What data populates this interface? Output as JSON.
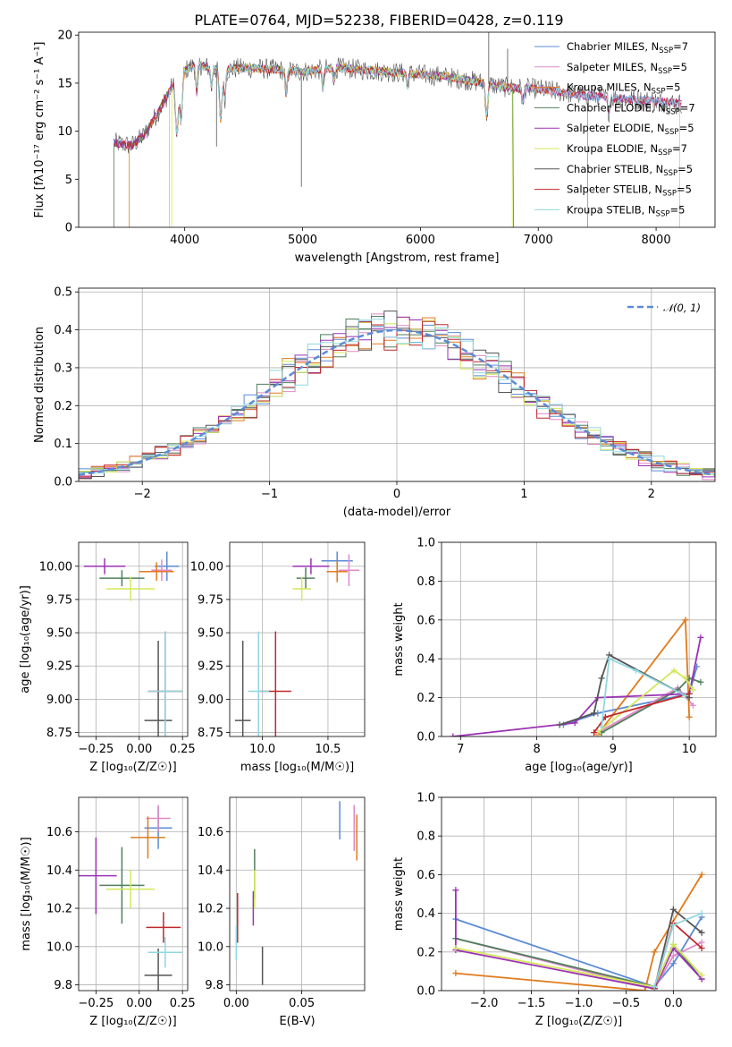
{
  "colors": [
    "#5b8bd6",
    "#e089c6",
    "#e07b1c",
    "#4f7f5c",
    "#9b32b4",
    "#d4e85a",
    "#555555",
    "#c0282b",
    "#8fd7e0"
  ],
  "chart_data": [
    {
      "id": "spectrum",
      "type": "line",
      "title": "PLATE=0764, MJD=52238, FIBERID=0428, z=0.119",
      "xlabel": "wavelength [Angstrom, rest frame]",
      "ylabel": "Flux [fλ10⁻¹⁷ erg cm⁻² s⁻¹ A⁻¹]",
      "xlim": [
        3100,
        8500
      ],
      "ylim": [
        0,
        20.3
      ],
      "xticks": [
        "4000",
        "5000",
        "6000",
        "7000",
        "8000"
      ],
      "xtick_values": [
        4000,
        5000,
        6000,
        7000,
        8000
      ],
      "yticks": [
        "0",
        "5",
        "10",
        "15",
        "20"
      ],
      "ytick_values": [
        0,
        5,
        10,
        15,
        20
      ],
      "legend_position": "right",
      "legend": [
        {
          "label": "Chabrier MILES, N",
          "sub": "SSP",
          "tail": "=7"
        },
        {
          "label": "Salpeter MILES, N",
          "sub": "SSP",
          "tail": "=5"
        },
        {
          "label": "Kroupa MILES, N",
          "sub": "SSP",
          "tail": "=5"
        },
        {
          "label": "Chabrier ELODIE, N",
          "sub": "SSP",
          "tail": "=7"
        },
        {
          "label": "Salpeter ELODIE, N",
          "sub": "SSP",
          "tail": "=5"
        },
        {
          "label": "Kroupa ELODIE, N",
          "sub": "SSP",
          "tail": "=7"
        },
        {
          "label": "Chabrier STELIB, N",
          "sub": "SSP",
          "tail": "=5"
        },
        {
          "label": "Salpeter STELIB, N",
          "sub": "SSP",
          "tail": "=5"
        },
        {
          "label": "Kroupa STELIB, N",
          "sub": "SSP",
          "tail": "=5"
        }
      ],
      "continuum": [
        [
          3400,
          8.8
        ],
        [
          3550,
          8.5
        ],
        [
          3650,
          9.5
        ],
        [
          3800,
          12.5
        ],
        [
          3950,
          16.0
        ],
        [
          4100,
          17.0
        ],
        [
          4300,
          16.3
        ],
        [
          4500,
          16.6
        ],
        [
          4800,
          16.4
        ],
        [
          5000,
          16.2
        ],
        [
          5300,
          16.6
        ],
        [
          5600,
          16.3
        ],
        [
          5900,
          16.0
        ],
        [
          6200,
          15.7
        ],
        [
          6500,
          15.1
        ],
        [
          6700,
          14.6
        ],
        [
          7000,
          14.4
        ],
        [
          7400,
          13.7
        ],
        [
          7800,
          13.3
        ],
        [
          8200,
          12.9
        ]
      ],
      "absorption_lines": [
        [
          3934,
          6
        ],
        [
          3969,
          5
        ],
        [
          4102,
          3
        ],
        [
          4227,
          2
        ],
        [
          4305,
          5
        ],
        [
          4340,
          3
        ],
        [
          4861,
          2.5
        ],
        [
          5175,
          2
        ],
        [
          5270,
          1.2
        ],
        [
          5890,
          1.5
        ],
        [
          6563,
          3.5
        ],
        [
          6870,
          1.5
        ],
        [
          7600,
          1.5
        ]
      ]
    },
    {
      "id": "residuals",
      "type": "bar",
      "xlabel": "(data-model)/error",
      "ylabel": "Normed distribution",
      "xlim": [
        -2.5,
        2.5
      ],
      "ylim": [
        0,
        0.51
      ],
      "xticks": [
        "−2",
        "−1",
        "0",
        "1",
        "2"
      ],
      "xtick_values": [
        -2,
        -1,
        0,
        1,
        2
      ],
      "yticks": [
        "0.0",
        "0.1",
        "0.2",
        "0.3",
        "0.4",
        "0.5"
      ],
      "ytick_values": [
        0,
        0.1,
        0.2,
        0.3,
        0.4,
        0.5
      ],
      "bin_width": 0.1,
      "legend": "𝒩(0, 1)",
      "legend_position": "top-right",
      "mean": 0,
      "sigma": 1
    },
    {
      "id": "age-z",
      "type": "scatter",
      "xlabel": "Z [log₁₀(Z/Z☉)]",
      "ylabel": "age  [log₁₀(age/yr)]",
      "xlim": [
        -0.35,
        0.28
      ],
      "ylim": [
        8.72,
        10.18
      ],
      "xticks": [
        "−0.25",
        "0.00",
        "0.25"
      ],
      "xtick_values": [
        -0.25,
        0,
        0.25
      ],
      "yticks": [
        "8.75",
        "9.00",
        "9.25",
        "9.50",
        "9.75",
        "10.00"
      ],
      "ytick_values": [
        8.75,
        9.0,
        9.25,
        9.5,
        9.75,
        10.0
      ],
      "points": [
        {
          "x": 0.16,
          "y": 10.0,
          "xerr": 0.07,
          "yerr": 0.11
        },
        {
          "x": 0.13,
          "y": 9.97,
          "xerr": 0.06,
          "yerr": 0.08
        },
        {
          "x": 0.1,
          "y": 9.96,
          "xerr": 0.1,
          "yerr": 0.07
        },
        {
          "x": -0.1,
          "y": 9.91,
          "xerr": 0.13,
          "yerr": 0.06
        },
        {
          "x": -0.2,
          "y": 10.0,
          "xerr": 0.12,
          "yerr": 0.06
        },
        {
          "x": -0.05,
          "y": 9.83,
          "xerr": 0.14,
          "yerr": 0.09
        },
        {
          "x": 0.11,
          "y": 8.84,
          "xerr": 0.08,
          "yerr": 0.6
        },
        {
          "x": 0.15,
          "y": 9.06,
          "xerr": 0.1,
          "yerr": 0.45
        },
        {
          "x": 0.15,
          "y": 9.06,
          "xerr": 0.1,
          "yerr": 0.45
        }
      ]
    },
    {
      "id": "age-mass",
      "type": "scatter",
      "xlabel": "mass [log₁₀(M/M☉)]",
      "ylabel": "",
      "xlim": [
        9.75,
        10.78
      ],
      "ylim": [
        8.72,
        10.18
      ],
      "xticks": [
        "10.0",
        "10.5"
      ],
      "xtick_values": [
        10.0,
        10.5
      ],
      "yticks": [
        "8.75",
        "9.00",
        "9.25",
        "9.50",
        "9.75",
        "10.00"
      ],
      "ytick_values": [
        8.75,
        9.0,
        9.25,
        9.5,
        9.75,
        10.0
      ],
      "points": [
        {
          "x": 10.57,
          "y": 10.04,
          "xerr": 0.12,
          "yerr": 0.07
        },
        {
          "x": 10.66,
          "y": 9.97,
          "xerr": 0.08,
          "yerr": 0.12
        },
        {
          "x": 10.57,
          "y": 9.96,
          "xerr": 0.08,
          "yerr": 0.08
        },
        {
          "x": 10.33,
          "y": 9.91,
          "xerr": 0.07,
          "yerr": 0.08
        },
        {
          "x": 10.37,
          "y": 10.0,
          "xerr": 0.14,
          "yerr": 0.06
        },
        {
          "x": 10.3,
          "y": 9.83,
          "xerr": 0.07,
          "yerr": 0.09
        },
        {
          "x": 9.85,
          "y": 8.84,
          "xerr": 0.06,
          "yerr": 0.6
        },
        {
          "x": 10.1,
          "y": 9.06,
          "xerr": 0.12,
          "yerr": 0.45
        },
        {
          "x": 9.97,
          "y": 9.06,
          "xerr": 0.08,
          "yerr": 0.45
        }
      ]
    },
    {
      "id": "weight-age",
      "type": "line",
      "xlabel": "age  [log₁₀(age/yr)]",
      "ylabel": "mass weight",
      "xlim": [
        6.75,
        10.35
      ],
      "ylim": [
        0,
        1.0
      ],
      "xticks": [
        "7",
        "8",
        "9",
        "10"
      ],
      "xtick_values": [
        7,
        8,
        9,
        10
      ],
      "yticks": [
        "0.0",
        "0.2",
        "0.4",
        "0.6",
        "0.8",
        "1.0"
      ],
      "ytick_values": [
        0,
        0.2,
        0.4,
        0.6,
        0.8,
        1.0
      ],
      "series": [
        {
          "x": [
            8.35,
            8.8,
            10.0,
            10.1
          ],
          "y": [
            0.06,
            0.12,
            0.22,
            0.36
          ]
        },
        {
          "x": [
            8.8,
            9.85,
            10.05
          ],
          "y": [
            0.02,
            0.25,
            0.16
          ]
        },
        {
          "x": [
            8.8,
            9.95,
            10.0
          ],
          "y": [
            0.01,
            0.6,
            0.1
          ]
        },
        {
          "x": [
            8.85,
            9.85,
            10.0,
            10.15
          ],
          "y": [
            0.02,
            0.24,
            0.3,
            0.28
          ]
        },
        {
          "x": [
            6.9,
            8.5,
            8.8,
            10.0,
            10.15
          ],
          "y": [
            0.0,
            0.07,
            0.2,
            0.22,
            0.51
          ]
        },
        {
          "x": [
            8.8,
            9.8,
            9.95,
            10.05
          ],
          "y": [
            0.02,
            0.34,
            0.3,
            0.24
          ]
        },
        {
          "x": [
            8.3,
            8.75,
            8.85,
            8.95,
            10.0
          ],
          "y": [
            0.06,
            0.12,
            0.3,
            0.42,
            0.2
          ]
        },
        {
          "x": [
            8.75,
            8.9,
            10.0
          ],
          "y": [
            0.02,
            0.1,
            0.22
          ]
        },
        {
          "x": [
            8.85,
            8.95,
            9.3,
            9.95
          ],
          "y": [
            0.05,
            0.4,
            0.34,
            0.21
          ]
        }
      ]
    },
    {
      "id": "mass-z",
      "type": "scatter",
      "xlabel": "Z [log₁₀(Z/Z☉)]",
      "ylabel": "mass [log₁₀(M/M☉)]",
      "xlim": [
        -0.35,
        0.28
      ],
      "ylim": [
        9.77,
        10.78
      ],
      "xticks": [
        "−0.25",
        "0.00",
        "0.25"
      ],
      "xtick_values": [
        -0.25,
        0,
        0.25
      ],
      "yticks": [
        "9.8",
        "10.0",
        "10.2",
        "10.4",
        "10.6"
      ],
      "ytick_values": [
        9.8,
        10.0,
        10.2,
        10.4,
        10.6
      ],
      "points": [
        {
          "x": 0.11,
          "y": 10.62,
          "xerr": 0.08,
          "yerr": 0.11
        },
        {
          "x": 0.11,
          "y": 10.67,
          "xerr": 0.07,
          "yerr": 0.07
        },
        {
          "x": 0.05,
          "y": 10.57,
          "xerr": 0.1,
          "yerr": 0.11
        },
        {
          "x": -0.1,
          "y": 10.32,
          "xerr": 0.13,
          "yerr": 0.2
        },
        {
          "x": -0.25,
          "y": 10.37,
          "xerr": 0.12,
          "yerr": 0.2
        },
        {
          "x": -0.05,
          "y": 10.3,
          "xerr": 0.14,
          "yerr": 0.1
        },
        {
          "x": 0.11,
          "y": 9.85,
          "xerr": 0.08,
          "yerr": 0.14
        },
        {
          "x": 0.14,
          "y": 10.1,
          "xerr": 0.1,
          "yerr": 0.08
        },
        {
          "x": 0.15,
          "y": 9.97,
          "xerr": 0.1,
          "yerr": 0.08
        }
      ]
    },
    {
      "id": "mass-ebv",
      "type": "scatter",
      "xlabel": "E(B-V)",
      "ylabel": "",
      "xlim": [
        -0.005,
        0.098
      ],
      "ylim": [
        9.77,
        10.78
      ],
      "xticks": [
        "0.00",
        "0.05"
      ],
      "xtick_values": [
        0,
        0.05
      ],
      "yticks": [
        "9.8",
        "10.0",
        "10.2",
        "10.4",
        "10.6"
      ],
      "ytick_values": [
        9.8,
        10.0,
        10.2,
        10.4,
        10.6
      ],
      "points": [
        {
          "x": 0.079,
          "y": 10.66,
          "xerr": 0,
          "yerr": 0.1
        },
        {
          "x": 0.09,
          "y": 10.62,
          "xerr": 0,
          "yerr": 0.12
        },
        {
          "x": 0.092,
          "y": 10.57,
          "xerr": 0,
          "yerr": 0.12
        },
        {
          "x": 0.014,
          "y": 10.38,
          "xerr": 0,
          "yerr": 0.13
        },
        {
          "x": 0.013,
          "y": 10.2,
          "xerr": 0,
          "yerr": 0.09
        },
        {
          "x": 0.014,
          "y": 10.3,
          "xerr": 0,
          "yerr": 0.1
        },
        {
          "x": 0.02,
          "y": 9.9,
          "xerr": 0,
          "yerr": 0.1
        },
        {
          "x": 0.001,
          "y": 10.15,
          "xerr": 0,
          "yerr": 0.13
        },
        {
          "x": 0.0,
          "y": 10.02,
          "xerr": 0,
          "yerr": 0.09
        }
      ]
    },
    {
      "id": "weight-z",
      "type": "line",
      "xlabel": "Z [log₁₀(Z/Z☉)]",
      "ylabel": "mass weight",
      "xlim": [
        -2.45,
        0.45
      ],
      "ylim": [
        0,
        1.0
      ],
      "xticks": [
        "−2.0",
        "−1.5",
        "−1.0",
        "−0.5",
        "0.0"
      ],
      "xtick_values": [
        -2.0,
        -1.5,
        -1.0,
        -0.5,
        0.0
      ],
      "yticks": [
        "0.0",
        "0.2",
        "0.4",
        "0.6",
        "0.8",
        "1.0"
      ],
      "ytick_values": [
        0,
        0.2,
        0.4,
        0.6,
        0.8,
        1.0
      ],
      "series": [
        {
          "x": [
            -2.3,
            -0.2,
            0.0,
            0.3
          ],
          "y": [
            0.37,
            0.02,
            0.14,
            0.38
          ]
        },
        {
          "x": [
            -2.3,
            -0.2,
            0.0,
            0.3
          ],
          "y": [
            0.27,
            0.01,
            0.18,
            0.25
          ]
        },
        {
          "x": [
            -2.3,
            -0.3,
            -0.2,
            0.3
          ],
          "y": [
            0.09,
            0.0,
            0.2,
            0.6
          ]
        },
        {
          "x": [
            -2.3,
            -0.2,
            0.0,
            0.3
          ],
          "y": [
            0.27,
            0.02,
            0.24,
            0.06
          ]
        },
        {
          "x": [
            -2.3,
            -2.3,
            -0.2,
            0.0,
            0.3
          ],
          "y": [
            0.52,
            0.21,
            0.01,
            0.22,
            0.06
          ]
        },
        {
          "x": [
            -2.3,
            -0.2,
            0.0,
            0.3
          ],
          "y": [
            0.22,
            0.02,
            0.24,
            0.08
          ]
        },
        {
          "x": [
            -0.2,
            0.0,
            0.3
          ],
          "y": [
            0.01,
            0.42,
            0.3
          ]
        },
        {
          "x": [
            -0.2,
            0.0,
            0.3
          ],
          "y": [
            0.01,
            0.35,
            0.22
          ]
        },
        {
          "x": [
            -0.2,
            0.0,
            0.3
          ],
          "y": [
            0.02,
            0.34,
            0.4
          ]
        }
      ]
    }
  ]
}
